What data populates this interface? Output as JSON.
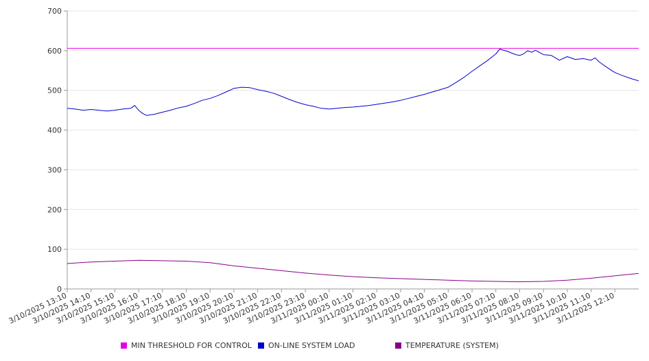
{
  "chart_data": {
    "type": "line",
    "title": "",
    "xlabel": "",
    "ylabel": "",
    "ylim": [
      0,
      700
    ],
    "yticks": [
      0,
      100,
      200,
      300,
      400,
      500,
      600,
      700
    ],
    "grid": true,
    "legend_position": "bottom",
    "x_tick_labels": [
      "3/10/2025 13:10",
      "3/10/2025 14:10",
      "3/10/2025 15:10",
      "3/10/2025 16:10",
      "3/10/2025 17:10",
      "3/10/2025 18:10",
      "3/10/2025 19:10",
      "3/10/2025 20:10",
      "3/10/2025 21:10",
      "3/10/2025 22:10",
      "3/10/2025 23:10",
      "3/11/2025 00:10",
      "3/11/2025 01:10",
      "3/11/2025 02:10",
      "3/11/2025 03:10",
      "3/11/2025 04:10",
      "3/11/2025 05:10",
      "3/11/2025 06:10",
      "3/11/2025 07:10",
      "3/11/2025 08:10",
      "3/11/2025 09:10",
      "3/11/2025 10:10",
      "3/11/2025 11:10",
      "3/11/2025 12:10"
    ],
    "x_range": [
      "3/10/2025 13:10",
      "3/11/2025 13:10"
    ],
    "series": [
      {
        "name": "MIN THRESHOLD FOR CONTROL",
        "color": "#e400e4",
        "points": [
          [
            "3/10/2025 13:10",
            606
          ],
          [
            "3/11/2025 13:10",
            606
          ]
        ]
      },
      {
        "name": "ON-LINE SYSTEM LOAD",
        "color": "#0000cc",
        "points": [
          [
            "3/10/2025 13:10",
            455
          ],
          [
            "3/10/2025 13:30",
            453
          ],
          [
            "3/10/2025 13:50",
            450
          ],
          [
            "3/10/2025 14:10",
            452
          ],
          [
            "3/10/2025 14:30",
            450
          ],
          [
            "3/10/2025 14:50",
            448
          ],
          [
            "3/10/2025 15:10",
            450
          ],
          [
            "3/10/2025 15:30",
            453
          ],
          [
            "3/10/2025 15:50",
            455
          ],
          [
            "3/10/2025 16:00",
            462
          ],
          [
            "3/10/2025 16:10",
            450
          ],
          [
            "3/10/2025 16:20",
            442
          ],
          [
            "3/10/2025 16:30",
            437
          ],
          [
            "3/10/2025 16:50",
            440
          ],
          [
            "3/10/2025 17:10",
            445
          ],
          [
            "3/10/2025 17:30",
            450
          ],
          [
            "3/10/2025 17:50",
            456
          ],
          [
            "3/10/2025 18:10",
            460
          ],
          [
            "3/10/2025 18:30",
            467
          ],
          [
            "3/10/2025 18:50",
            475
          ],
          [
            "3/10/2025 19:10",
            480
          ],
          [
            "3/10/2025 19:30",
            487
          ],
          [
            "3/10/2025 19:50",
            496
          ],
          [
            "3/10/2025 20:10",
            505
          ],
          [
            "3/10/2025 20:30",
            508
          ],
          [
            "3/10/2025 20:50",
            507
          ],
          [
            "3/10/2025 21:10",
            502
          ],
          [
            "3/10/2025 21:30",
            498
          ],
          [
            "3/10/2025 21:50",
            493
          ],
          [
            "3/10/2025 22:10",
            485
          ],
          [
            "3/10/2025 22:30",
            477
          ],
          [
            "3/10/2025 22:50",
            470
          ],
          [
            "3/10/2025 23:10",
            464
          ],
          [
            "3/10/2025 23:30",
            460
          ],
          [
            "3/10/2025 23:50",
            455
          ],
          [
            "3/11/2025 00:10",
            453
          ],
          [
            "3/11/2025 00:30",
            455
          ],
          [
            "3/11/2025 00:50",
            457
          ],
          [
            "3/11/2025 01:10",
            458
          ],
          [
            "3/11/2025 01:30",
            460
          ],
          [
            "3/11/2025 01:50",
            462
          ],
          [
            "3/11/2025 02:10",
            465
          ],
          [
            "3/11/2025 02:30",
            468
          ],
          [
            "3/11/2025 02:50",
            471
          ],
          [
            "3/11/2025 03:10",
            475
          ],
          [
            "3/11/2025 03:30",
            480
          ],
          [
            "3/11/2025 03:50",
            485
          ],
          [
            "3/11/2025 04:10",
            490
          ],
          [
            "3/11/2025 04:30",
            496
          ],
          [
            "3/11/2025 04:50",
            502
          ],
          [
            "3/11/2025 05:10",
            508
          ],
          [
            "3/11/2025 05:30",
            520
          ],
          [
            "3/11/2025 05:50",
            533
          ],
          [
            "3/11/2025 06:10",
            548
          ],
          [
            "3/11/2025 06:30",
            562
          ],
          [
            "3/11/2025 06:50",
            576
          ],
          [
            "3/11/2025 07:10",
            592
          ],
          [
            "3/11/2025 07:20",
            604
          ],
          [
            "3/11/2025 07:40",
            598
          ],
          [
            "3/11/2025 08:00",
            590
          ],
          [
            "3/11/2025 08:10",
            588
          ],
          [
            "3/11/2025 08:20",
            592
          ],
          [
            "3/11/2025 08:30",
            600
          ],
          [
            "3/11/2025 08:40",
            596
          ],
          [
            "3/11/2025 08:50",
            601
          ],
          [
            "3/11/2025 09:10",
            590
          ],
          [
            "3/11/2025 09:30",
            588
          ],
          [
            "3/11/2025 09:50",
            576
          ],
          [
            "3/11/2025 10:10",
            585
          ],
          [
            "3/11/2025 10:30",
            578
          ],
          [
            "3/11/2025 10:50",
            580
          ],
          [
            "3/11/2025 11:10",
            576
          ],
          [
            "3/11/2025 11:20",
            582
          ],
          [
            "3/11/2025 11:30",
            572
          ],
          [
            "3/11/2025 11:50",
            558
          ],
          [
            "3/11/2025 12:10",
            545
          ],
          [
            "3/11/2025 12:30",
            537
          ],
          [
            "3/11/2025 12:50",
            530
          ],
          [
            "3/11/2025 13:10",
            524
          ]
        ]
      },
      {
        "name": "TEMPERATURE (SYSTEM)",
        "color": "#880088",
        "points": [
          [
            "3/10/2025 13:10",
            64
          ],
          [
            "3/10/2025 14:10",
            68
          ],
          [
            "3/10/2025 15:10",
            70
          ],
          [
            "3/10/2025 16:10",
            72
          ],
          [
            "3/10/2025 17:10",
            71
          ],
          [
            "3/10/2025 18:10",
            70
          ],
          [
            "3/10/2025 19:10",
            66
          ],
          [
            "3/10/2025 20:10",
            58
          ],
          [
            "3/10/2025 21:10",
            52
          ],
          [
            "3/10/2025 22:10",
            46
          ],
          [
            "3/10/2025 23:10",
            40
          ],
          [
            "3/11/2025 00:10",
            35
          ],
          [
            "3/11/2025 01:10",
            31
          ],
          [
            "3/11/2025 02:10",
            28
          ],
          [
            "3/11/2025 03:10",
            26
          ],
          [
            "3/11/2025 04:10",
            24
          ],
          [
            "3/11/2025 05:10",
            22
          ],
          [
            "3/11/2025 06:10",
            20
          ],
          [
            "3/11/2025 07:10",
            19
          ],
          [
            "3/11/2025 08:10",
            18
          ],
          [
            "3/11/2025 09:10",
            19
          ],
          [
            "3/11/2025 10:10",
            22
          ],
          [
            "3/11/2025 11:10",
            27
          ],
          [
            "3/11/2025 12:10",
            33
          ],
          [
            "3/11/2025 13:10",
            39
          ]
        ]
      }
    ]
  },
  "legend": {
    "items": [
      {
        "label": "MIN THRESHOLD FOR CONTROL",
        "color": "#e400e4"
      },
      {
        "label": "ON-LINE SYSTEM LOAD",
        "color": "#0000cc"
      },
      {
        "label": "TEMPERATURE (SYSTEM)",
        "color": "#880088"
      }
    ]
  }
}
